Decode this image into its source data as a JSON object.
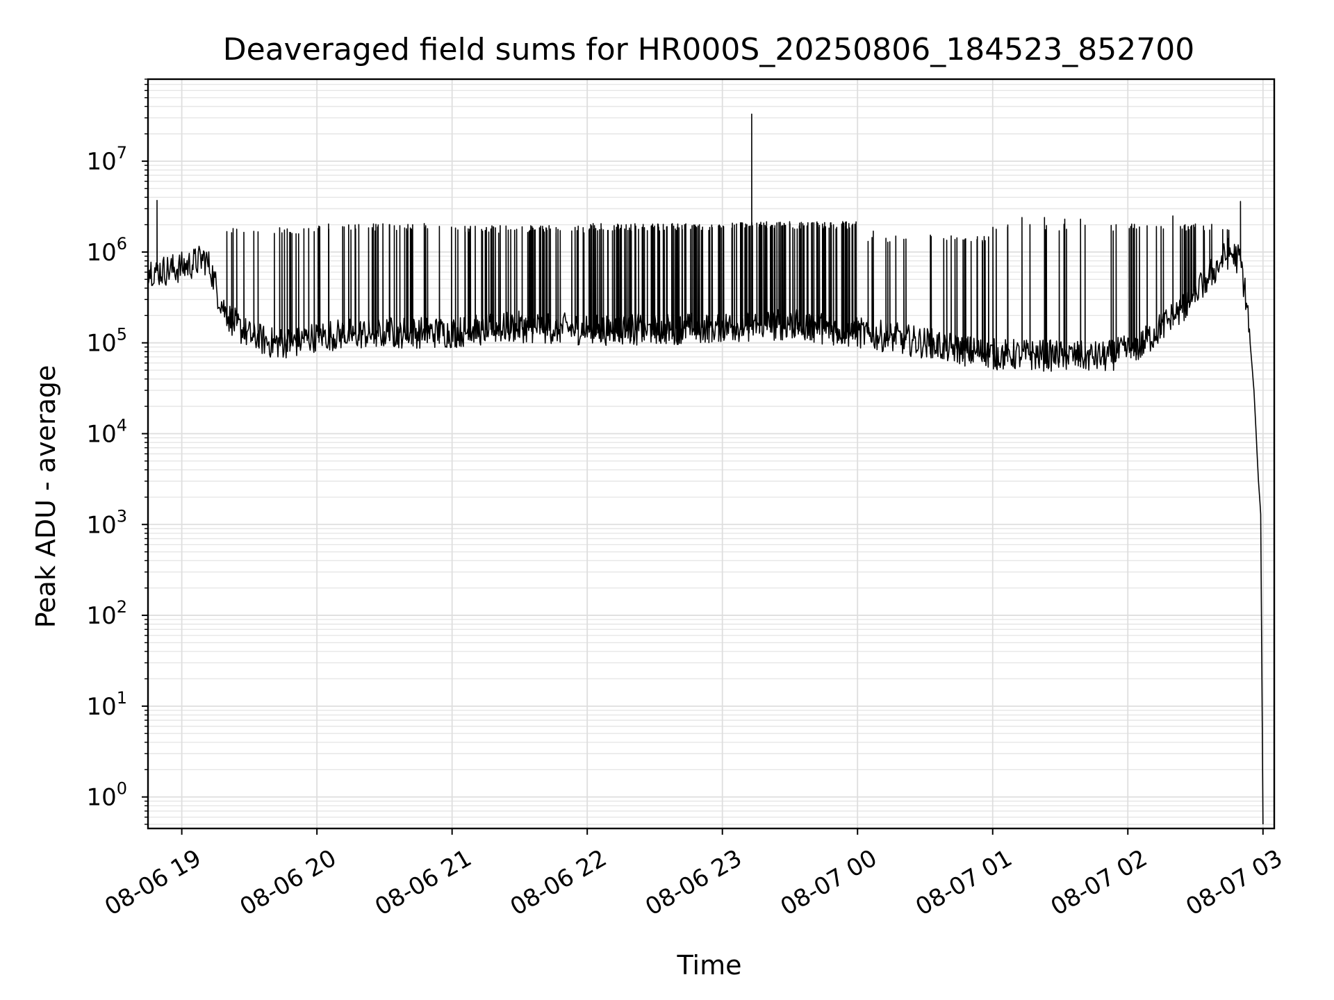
{
  "chart_data": {
    "type": "line",
    "title": "Deaveraged field sums for HR000S_20250806_184523_852700",
    "xlabel": "Time",
    "ylabel": "Peak ADU - average",
    "yscale": "log",
    "xlim": [
      "2025-08-06 18:45",
      "2025-08-07 03:05"
    ],
    "ylim": [
      0.45,
      80000000
    ],
    "grid": "major and minor, light gray",
    "line_color": "#000000",
    "x_ticks": [
      {
        "label": "08-06 19",
        "t": "2025-08-06 19:00"
      },
      {
        "label": "08-06 20",
        "t": "2025-08-06 20:00"
      },
      {
        "label": "08-06 21",
        "t": "2025-08-06 21:00"
      },
      {
        "label": "08-06 22",
        "t": "2025-08-06 22:00"
      },
      {
        "label": "08-06 23",
        "t": "2025-08-06 23:00"
      },
      {
        "label": "08-07 00",
        "t": "2025-08-07 00:00"
      },
      {
        "label": "08-07 01",
        "t": "2025-08-07 01:00"
      },
      {
        "label": "08-07 02",
        "t": "2025-08-07 02:00"
      },
      {
        "label": "08-07 03",
        "t": "2025-08-07 03:00"
      }
    ],
    "y_ticks": [
      {
        "base": "10",
        "exp": "0",
        "value": 1
      },
      {
        "base": "10",
        "exp": "1",
        "value": 10
      },
      {
        "base": "10",
        "exp": "2",
        "value": 100
      },
      {
        "base": "10",
        "exp": "3",
        "value": 1000
      },
      {
        "base": "10",
        "exp": "4",
        "value": 10000
      },
      {
        "base": "10",
        "exp": "5",
        "value": 100000
      },
      {
        "base": "10",
        "exp": "6",
        "value": 1000000
      },
      {
        "base": "10",
        "exp": "7",
        "value": 10000000
      }
    ],
    "series": [
      {
        "baseline": [
          [
            "2025-08-06 18:45",
            650000
          ],
          [
            "2025-08-06 18:50",
            620000
          ],
          [
            "2025-08-06 18:55",
            640000
          ],
          [
            "2025-08-06 19:00",
            680000
          ],
          [
            "2025-08-06 19:05",
            750000
          ],
          [
            "2025-08-06 19:10",
            850000
          ],
          [
            "2025-08-06 19:13",
            650000
          ],
          [
            "2025-08-06 19:16",
            350000
          ],
          [
            "2025-08-06 19:20",
            200000
          ],
          [
            "2025-08-06 19:25",
            150000
          ],
          [
            "2025-08-06 19:30",
            120000
          ],
          [
            "2025-08-06 19:40",
            100000
          ],
          [
            "2025-08-06 19:50",
            100000
          ],
          [
            "2025-08-06 20:00",
            120000
          ],
          [
            "2025-08-06 20:30",
            130000
          ],
          [
            "2025-08-06 21:00",
            130000
          ],
          [
            "2025-08-06 21:30",
            150000
          ],
          [
            "2025-08-06 22:00",
            140000
          ],
          [
            "2025-08-06 22:30",
            140000
          ],
          [
            "2025-08-06 23:00",
            150000
          ],
          [
            "2025-08-06 23:30",
            160000
          ],
          [
            "2025-08-07 00:00",
            130000
          ],
          [
            "2025-08-07 00:30",
            100000
          ],
          [
            "2025-08-07 00:50",
            80000
          ],
          [
            "2025-08-07 01:00",
            75000
          ],
          [
            "2025-08-07 01:30",
            72000
          ],
          [
            "2025-08-07 01:50",
            70000
          ],
          [
            "2025-08-07 02:05",
            90000
          ],
          [
            "2025-08-07 02:15",
            150000
          ],
          [
            "2025-08-07 02:25",
            250000
          ],
          [
            "2025-08-07 02:35",
            500000
          ],
          [
            "2025-08-07 02:45",
            1000000
          ],
          [
            "2025-08-07 02:50",
            800000
          ],
          [
            "2025-08-07 02:53",
            250000
          ],
          [
            "2025-08-07 02:56",
            30000
          ],
          [
            "2025-08-07 02:58",
            3000
          ],
          [
            "2025-08-07 02:59",
            1300
          ],
          [
            "2025-08-07 03:00",
            0.5
          ]
        ],
        "spike_regions": [
          {
            "from": "2025-08-06 19:15",
            "to": "2025-08-06 20:00",
            "count": 20,
            "peak": 1800000
          },
          {
            "from": "2025-08-06 20:00",
            "to": "2025-08-06 21:00",
            "count": 40,
            "peak": 2000000
          },
          {
            "from": "2025-08-06 21:00",
            "to": "2025-08-06 22:00",
            "count": 60,
            "peak": 1900000
          },
          {
            "from": "2025-08-06 22:00",
            "to": "2025-08-06 23:00",
            "count": 90,
            "peak": 2000000
          },
          {
            "from": "2025-08-06 23:00",
            "to": "2025-08-07 00:00",
            "count": 110,
            "peak": 2100000
          },
          {
            "from": "2025-08-07 00:00",
            "to": "2025-08-07 01:00",
            "count": 25,
            "peak": 1500000
          },
          {
            "from": "2025-08-07 01:00",
            "to": "2025-08-07 02:00",
            "count": 14,
            "peak": 2000000
          },
          {
            "from": "2025-08-07 02:00",
            "to": "2025-08-07 02:50",
            "count": 30,
            "peak": 2000000
          }
        ],
        "notable_points": [
          [
            "2025-08-06 18:49",
            3700000
          ],
          [
            "2025-08-06 23:13",
            33000000
          ],
          [
            "2025-08-07 00:07",
            1700000
          ],
          [
            "2025-08-07 00:17",
            1500000
          ],
          [
            "2025-08-07 00:48",
            1400000
          ],
          [
            "2025-08-07 01:13",
            2400000
          ],
          [
            "2025-08-07 01:23",
            2400000
          ],
          [
            "2025-08-07 01:32",
            2300000
          ],
          [
            "2025-08-07 01:39",
            2300000
          ],
          [
            "2025-08-07 02:20",
            2500000
          ],
          [
            "2025-08-07 02:28",
            1900000
          ],
          [
            "2025-08-07 02:50",
            3600000
          ]
        ]
      }
    ]
  }
}
